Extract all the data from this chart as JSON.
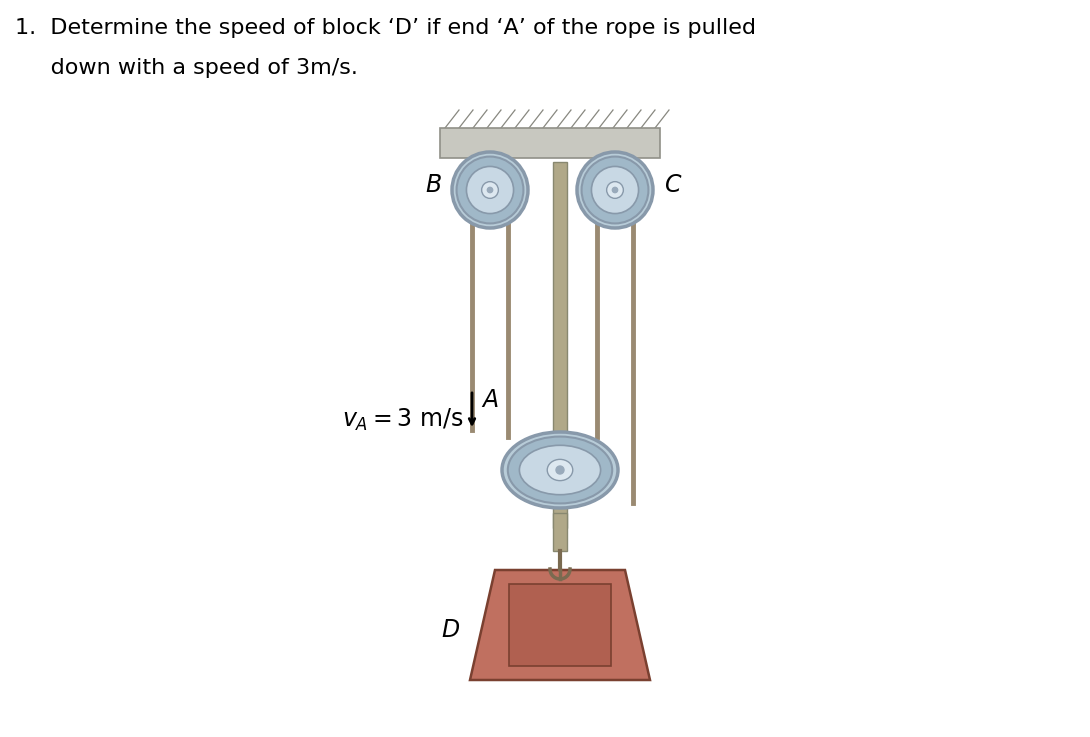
{
  "title_line1": "1.  Determine the speed of block ‘D’ if end ‘A’ of the rope is pulled",
  "title_line2": "     down with a speed of 3m/s.",
  "background_color": "#ffffff",
  "ceiling_color": "#c8c8c0",
  "ceiling_border": "#909088",
  "rope_color": "#9a8a72",
  "rope_lw": 3.5,
  "label_B": "B",
  "label_C": "C",
  "label_A": "A",
  "label_D": "D",
  "va_label": "$v_A = 3$ m/s",
  "pulley_outer_color": "#b8ccd8",
  "pulley_rim_color": "#8899aa",
  "pulley_mid_color": "#c8d8e4",
  "pulley_hub_color": "#dde8f0",
  "pulley_center_color": "#99aabb"
}
